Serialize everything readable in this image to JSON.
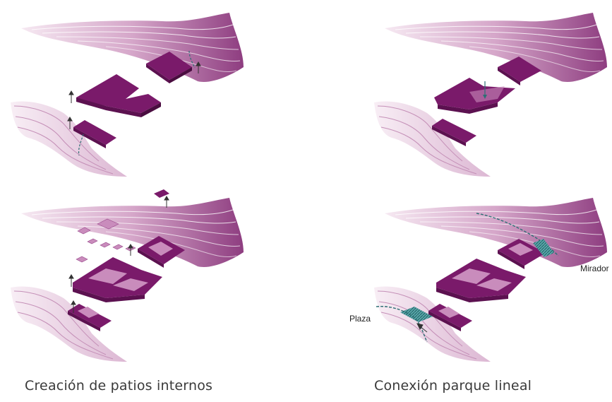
{
  "captions": {
    "left": "Creación de patios internos",
    "right": "Conexión parque lineal"
  },
  "annotations": {
    "plaza": "Plaza",
    "mirador": "Mirador"
  },
  "colors": {
    "building": "#7a1a6a",
    "building_side": "#5c1150",
    "terrain_dark": "#9a4a8c",
    "terrain_light": "#ead3e4",
    "path": "#2e6f74",
    "plaza_fill": "#3f9a9e"
  }
}
